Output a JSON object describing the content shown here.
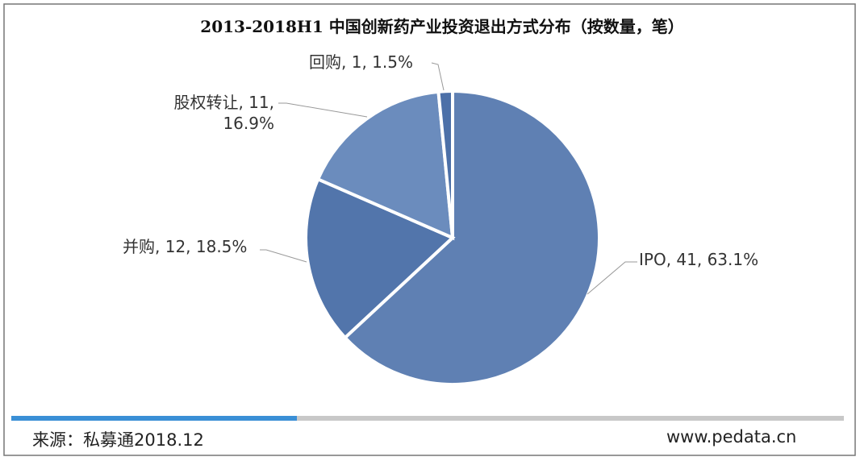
{
  "chart_data": {
    "type": "pie",
    "title": "2013-2018H1 中国创新药产业投资退出方式分布（按数量，笔）",
    "values": [
      41,
      12,
      11,
      1
    ],
    "value_labels": [
      "IPO, 41, 63.1%",
      "并购, 12, 18.5%",
      "股权转让, 11, 16.9%",
      "回购, 1, 1.5%"
    ],
    "colors": [
      "#5f80b3",
      "#5275ab",
      "#6b8cbd",
      "#4c70a8"
    ]
  },
  "footer": {
    "source": "来源：私募通2018.12",
    "website": "www.pedata.cn"
  }
}
